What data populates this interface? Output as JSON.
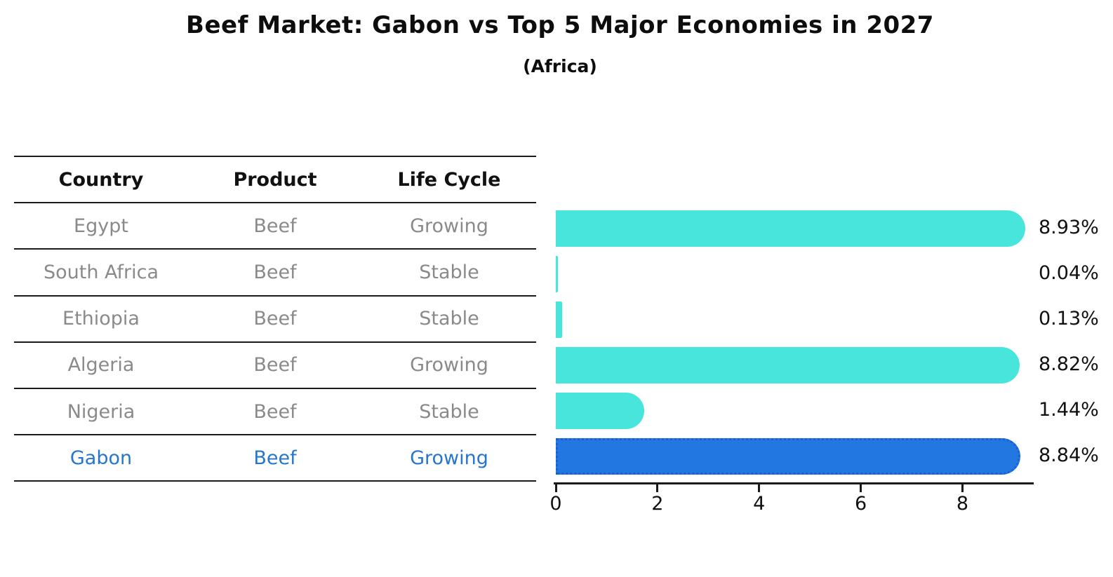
{
  "title": "Beef Market: Gabon vs Top 5 Major Economies in 2027",
  "subtitle": "(Africa)",
  "table": {
    "headers": [
      "Country",
      "Product",
      "Life Cycle"
    ],
    "rows": [
      {
        "country": "Egypt",
        "product": "Beef",
        "life_cycle": "Growing"
      },
      {
        "country": "South Africa",
        "product": "Beef",
        "life_cycle": "Stable"
      },
      {
        "country": "Ethiopia",
        "product": "Beef",
        "life_cycle": "Stable"
      },
      {
        "country": "Algeria",
        "product": "Beef",
        "life_cycle": "Growing"
      },
      {
        "country": "Nigeria",
        "product": "Beef",
        "life_cycle": "Stable"
      },
      {
        "country": "Gabon",
        "product": "Beef",
        "life_cycle": "Growing"
      }
    ],
    "highlight_row": "Gabon"
  },
  "chart_data": {
    "type": "bar",
    "orientation": "horizontal",
    "categories": [
      "Egypt",
      "South Africa",
      "Ethiopia",
      "Algeria",
      "Nigeria",
      "Gabon"
    ],
    "values": [
      8.93,
      0.04,
      0.13,
      8.82,
      1.44,
      8.84
    ],
    "value_labels": [
      "8.93%",
      "0.04%",
      "0.13%",
      "8.82%",
      "1.44%",
      "8.84%"
    ],
    "x_ticks": [
      "0",
      "2",
      "4",
      "6",
      "8"
    ],
    "x_tick_values": [
      0,
      2,
      4,
      6,
      8
    ],
    "xlim": [
      0,
      9.36
    ],
    "grid": "off",
    "legend": "none",
    "bar_color": "#48e5dd",
    "highlight_color": "#2277e0",
    "highlight_border_color": "#1a5fd6",
    "highlight_index": 5,
    "highlight_text_color": "#2676cd"
  }
}
